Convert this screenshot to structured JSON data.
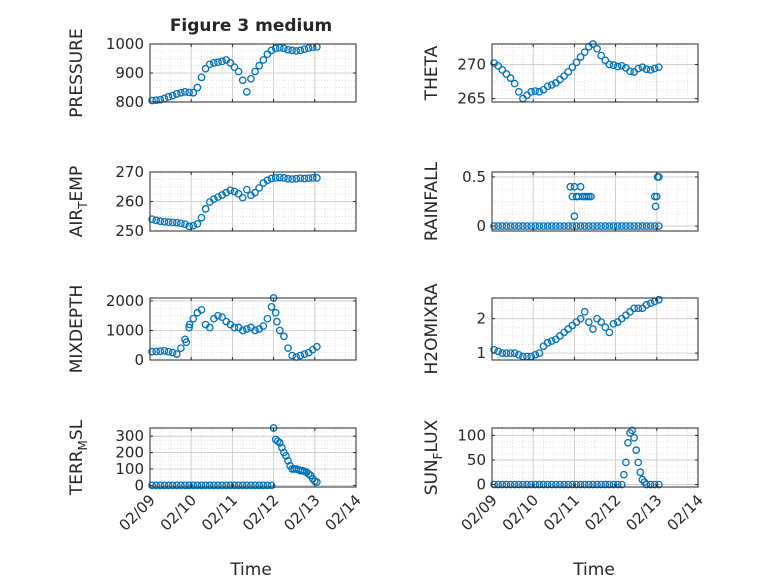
{
  "figure": {
    "title": "Figure 3 medium",
    "xlabel": "Time",
    "xtick_labels": [
      "02/09",
      "02/10",
      "02/11",
      "02/12",
      "02/13",
      "02/14"
    ],
    "marker_color": "#0072BD",
    "grid": true,
    "grid_style": "dotted",
    "marker": "open-circle"
  },
  "chart_data": [
    {
      "type": "scatter",
      "ylabel": "PRESSURE",
      "xlim": [
        0,
        5
      ],
      "ylim": [
        800,
        1000
      ],
      "yticks": [
        800,
        900,
        1000
      ],
      "x": [
        0.05,
        0.15,
        0.25,
        0.35,
        0.45,
        0.55,
        0.65,
        0.75,
        0.85,
        0.95,
        1.05,
        1.15,
        1.25,
        1.35,
        1.45,
        1.55,
        1.65,
        1.75,
        1.85,
        1.95,
        2.05,
        2.15,
        2.25,
        2.35,
        2.45,
        2.55,
        2.65,
        2.75,
        2.85,
        2.95,
        3.05,
        3.15,
        3.25,
        3.35,
        3.45,
        3.55,
        3.65,
        3.75,
        3.85,
        3.95,
        4.05
      ],
      "y": [
        805,
        806,
        808,
        812,
        818,
        822,
        828,
        832,
        835,
        833,
        832,
        850,
        885,
        915,
        930,
        935,
        937,
        940,
        945,
        935,
        920,
        905,
        875,
        835,
        880,
        905,
        925,
        945,
        965,
        978,
        985,
        987,
        985,
        980,
        978,
        976,
        978,
        982,
        986,
        989,
        990
      ]
    },
    {
      "type": "scatter",
      "ylabel": "THETA",
      "xlim": [
        0,
        5
      ],
      "ylim": [
        264.5,
        273
      ],
      "yticks": [
        265,
        270
      ],
      "x": [
        0.05,
        0.15,
        0.25,
        0.35,
        0.45,
        0.55,
        0.65,
        0.75,
        0.85,
        0.95,
        1.05,
        1.15,
        1.25,
        1.35,
        1.45,
        1.55,
        1.65,
        1.75,
        1.85,
        1.95,
        2.05,
        2.15,
        2.25,
        2.35,
        2.45,
        2.55,
        2.65,
        2.75,
        2.85,
        2.95,
        3.05,
        3.15,
        3.25,
        3.35,
        3.45,
        3.55,
        3.65,
        3.75,
        3.85,
        3.95,
        4.05
      ],
      "y": [
        270.2,
        269.8,
        269.2,
        268.6,
        268.0,
        267.2,
        266.0,
        265.0,
        265.5,
        266.0,
        266.1,
        266.0,
        266.3,
        266.8,
        267.0,
        267.3,
        267.8,
        268.3,
        268.9,
        269.6,
        270.3,
        271.1,
        271.8,
        272.6,
        273.0,
        272.3,
        271.3,
        270.6,
        270.0,
        269.9,
        269.7,
        269.8,
        269.5,
        269.0,
        268.9,
        269.4,
        269.6,
        269.3,
        269.2,
        269.4,
        269.6
      ]
    },
    {
      "type": "scatter",
      "ylabel": "AIR_TEMP",
      "xlim": [
        0,
        5
      ],
      "ylim": [
        250,
        270
      ],
      "yticks": [
        250,
        260,
        270
      ],
      "x": [
        0.05,
        0.15,
        0.25,
        0.35,
        0.45,
        0.55,
        0.65,
        0.75,
        0.85,
        0.95,
        1.05,
        1.15,
        1.25,
        1.35,
        1.45,
        1.55,
        1.65,
        1.75,
        1.85,
        1.95,
        2.05,
        2.15,
        2.25,
        2.35,
        2.45,
        2.55,
        2.65,
        2.75,
        2.85,
        2.95,
        3.05,
        3.15,
        3.25,
        3.35,
        3.45,
        3.55,
        3.65,
        3.75,
        3.85,
        3.95,
        4.05
      ],
      "y": [
        254,
        253.6,
        253.3,
        253.1,
        253.0,
        252.9,
        252.8,
        252.6,
        252.3,
        251.6,
        251.8,
        252.4,
        254.5,
        257.5,
        259.8,
        260.8,
        261.5,
        262.2,
        263.0,
        263.8,
        263.4,
        262.6,
        261.3,
        264.0,
        262.1,
        263.0,
        264.6,
        266.3,
        267.2,
        267.8,
        268.0,
        268.1,
        268.0,
        267.7,
        267.6,
        267.7,
        267.9,
        267.8,
        267.9,
        268.0,
        268.0
      ]
    },
    {
      "type": "scatter",
      "ylabel": "RAINFALL",
      "xlim": [
        0,
        5
      ],
      "ylim": [
        -0.05,
        0.55
      ],
      "yticks": [
        0,
        0.5
      ],
      "x": [
        0.05,
        0.15,
        0.25,
        0.35,
        0.45,
        0.55,
        0.65,
        0.75,
        0.85,
        0.95,
        1.05,
        1.15,
        1.25,
        1.35,
        1.45,
        1.55,
        1.65,
        1.75,
        1.85,
        1.95,
        2.05,
        2.15,
        2.25,
        2.35,
        2.45,
        2.55,
        2.65,
        2.75,
        2.85,
        2.95,
        3.05,
        3.15,
        3.25,
        3.35,
        3.45,
        3.55,
        3.65,
        3.75,
        3.85,
        3.95,
        4.05,
        1.9,
        1.95,
        2.0,
        2.05,
        2.1,
        2.15,
        2.2,
        2.25,
        2.3,
        2.35,
        2.4,
        2.0,
        3.95,
        3.97,
        4.0,
        4.02,
        4.05
      ],
      "y": [
        0,
        0,
        0,
        0,
        0,
        0,
        0,
        0,
        0,
        0,
        0,
        0,
        0,
        0,
        0,
        0,
        0,
        0,
        0,
        0,
        0,
        0,
        0,
        0,
        0,
        0,
        0,
        0,
        0,
        0,
        0,
        0,
        0,
        0,
        0,
        0,
        0,
        0,
        0,
        0,
        0,
        0.4,
        0.3,
        0.4,
        0.3,
        0.3,
        0.4,
        0.3,
        0.3,
        0.3,
        0.3,
        0.3,
        0.1,
        0.3,
        0.2,
        0.3,
        0.5,
        0.5
      ]
    },
    {
      "type": "scatter",
      "ylabel": "MIXDEPTH",
      "xlim": [
        0,
        5
      ],
      "ylim": [
        0,
        2100
      ],
      "yticks": [
        0,
        1000,
        2000
      ],
      "x": [
        0.05,
        0.15,
        0.25,
        0.35,
        0.45,
        0.55,
        0.65,
        0.75,
        0.85,
        0.95,
        1.05,
        1.15,
        1.25,
        1.35,
        1.45,
        1.55,
        1.65,
        1.75,
        1.85,
        1.95,
        2.05,
        2.15,
        2.25,
        2.35,
        2.45,
        2.55,
        2.65,
        2.75,
        2.85,
        2.95,
        3.05,
        3.15,
        3.25,
        3.35,
        3.45,
        3.55,
        3.65,
        3.75,
        3.85,
        3.95,
        4.05,
        0.88,
        0.96,
        3.0,
        3.08
      ],
      "y": [
        280,
        290,
        300,
        310,
        280,
        250,
        200,
        400,
        700,
        1100,
        1400,
        1600,
        1700,
        1200,
        1100,
        1400,
        1500,
        1450,
        1300,
        1200,
        1100,
        1100,
        1000,
        1050,
        1100,
        1000,
        1050,
        1150,
        1400,
        1800,
        1600,
        1000,
        800,
        400,
        150,
        100,
        150,
        200,
        250,
        350,
        450,
        600,
        1200,
        2100,
        1300
      ]
    },
    {
      "type": "scatter",
      "ylabel": "H2OMIXRA",
      "xlim": [
        0,
        5
      ],
      "ylim": [
        0.8,
        2.6
      ],
      "yticks": [
        1,
        2
      ],
      "x": [
        0.05,
        0.15,
        0.25,
        0.35,
        0.45,
        0.55,
        0.65,
        0.75,
        0.85,
        0.95,
        1.05,
        1.15,
        1.25,
        1.35,
        1.45,
        1.55,
        1.65,
        1.75,
        1.85,
        1.95,
        2.05,
        2.15,
        2.25,
        2.35,
        2.45,
        2.55,
        2.65,
        2.75,
        2.85,
        2.95,
        3.05,
        3.15,
        3.25,
        3.35,
        3.45,
        3.55,
        3.65,
        3.75,
        3.85,
        3.95,
        4.05
      ],
      "y": [
        1.1,
        1.05,
        1.0,
        1.0,
        1.0,
        1.0,
        0.95,
        0.9,
        0.9,
        0.9,
        0.95,
        1.0,
        1.2,
        1.3,
        1.35,
        1.4,
        1.5,
        1.6,
        1.7,
        1.8,
        1.9,
        2.0,
        2.2,
        1.9,
        1.7,
        2.0,
        1.9,
        1.75,
        1.6,
        1.85,
        1.9,
        2.0,
        2.1,
        2.2,
        2.3,
        2.3,
        2.3,
        2.4,
        2.45,
        2.5,
        2.55
      ]
    },
    {
      "type": "scatter",
      "ylabel": "TERR_MSL",
      "xlim": [
        0,
        5
      ],
      "ylim": [
        -10,
        350
      ],
      "yticks": [
        0,
        100,
        200,
        300
      ],
      "x": [
        0.05,
        0.15,
        0.25,
        0.35,
        0.45,
        0.55,
        0.65,
        0.75,
        0.85,
        0.95,
        1.05,
        1.15,
        1.25,
        1.35,
        1.45,
        1.55,
        1.65,
        1.75,
        1.85,
        1.95,
        2.05,
        2.15,
        2.25,
        2.35,
        2.45,
        2.55,
        2.65,
        2.75,
        2.85,
        2.95,
        3.0,
        3.05,
        3.1,
        3.15,
        3.2,
        3.25,
        3.3,
        3.35,
        3.4,
        3.45,
        3.5,
        3.55,
        3.6,
        3.65,
        3.7,
        3.75,
        3.8,
        3.85,
        3.9,
        3.95,
        4.0,
        4.05
      ],
      "y": [
        0,
        0,
        0,
        0,
        0,
        0,
        0,
        0,
        0,
        0,
        0,
        0,
        0,
        0,
        0,
        0,
        0,
        0,
        0,
        0,
        0,
        0,
        0,
        0,
        0,
        0,
        0,
        0,
        0,
        0,
        350,
        280,
        270,
        260,
        230,
        200,
        180,
        150,
        120,
        100,
        100,
        100,
        95,
        90,
        90,
        85,
        80,
        70,
        60,
        40,
        25,
        20
      ]
    },
    {
      "type": "scatter",
      "ylabel": "SUN_FLUX",
      "xlim": [
        0,
        5
      ],
      "ylim": [
        -5,
        115
      ],
      "yticks": [
        0,
        50,
        100
      ],
      "x": [
        0.05,
        0.15,
        0.25,
        0.35,
        0.45,
        0.55,
        0.65,
        0.75,
        0.85,
        0.95,
        1.05,
        1.15,
        1.25,
        1.35,
        1.45,
        1.55,
        1.65,
        1.75,
        1.85,
        1.95,
        2.05,
        2.15,
        2.25,
        2.35,
        2.45,
        2.55,
        2.65,
        2.75,
        2.85,
        2.95,
        3.05,
        3.15,
        3.2,
        3.25,
        3.3,
        3.35,
        3.4,
        3.45,
        3.5,
        3.55,
        3.6,
        3.65,
        3.7,
        3.75,
        3.85,
        3.95,
        4.05
      ],
      "y": [
        0,
        0,
        0,
        0,
        0,
        0,
        0,
        0,
        0,
        0,
        0,
        0,
        0,
        0,
        0,
        0,
        0,
        0,
        0,
        0,
        0,
        0,
        0,
        0,
        0,
        0,
        0,
        0,
        0,
        0,
        0,
        0,
        20,
        45,
        85,
        105,
        110,
        95,
        70,
        45,
        25,
        10,
        5,
        0,
        0,
        0,
        0
      ]
    }
  ]
}
